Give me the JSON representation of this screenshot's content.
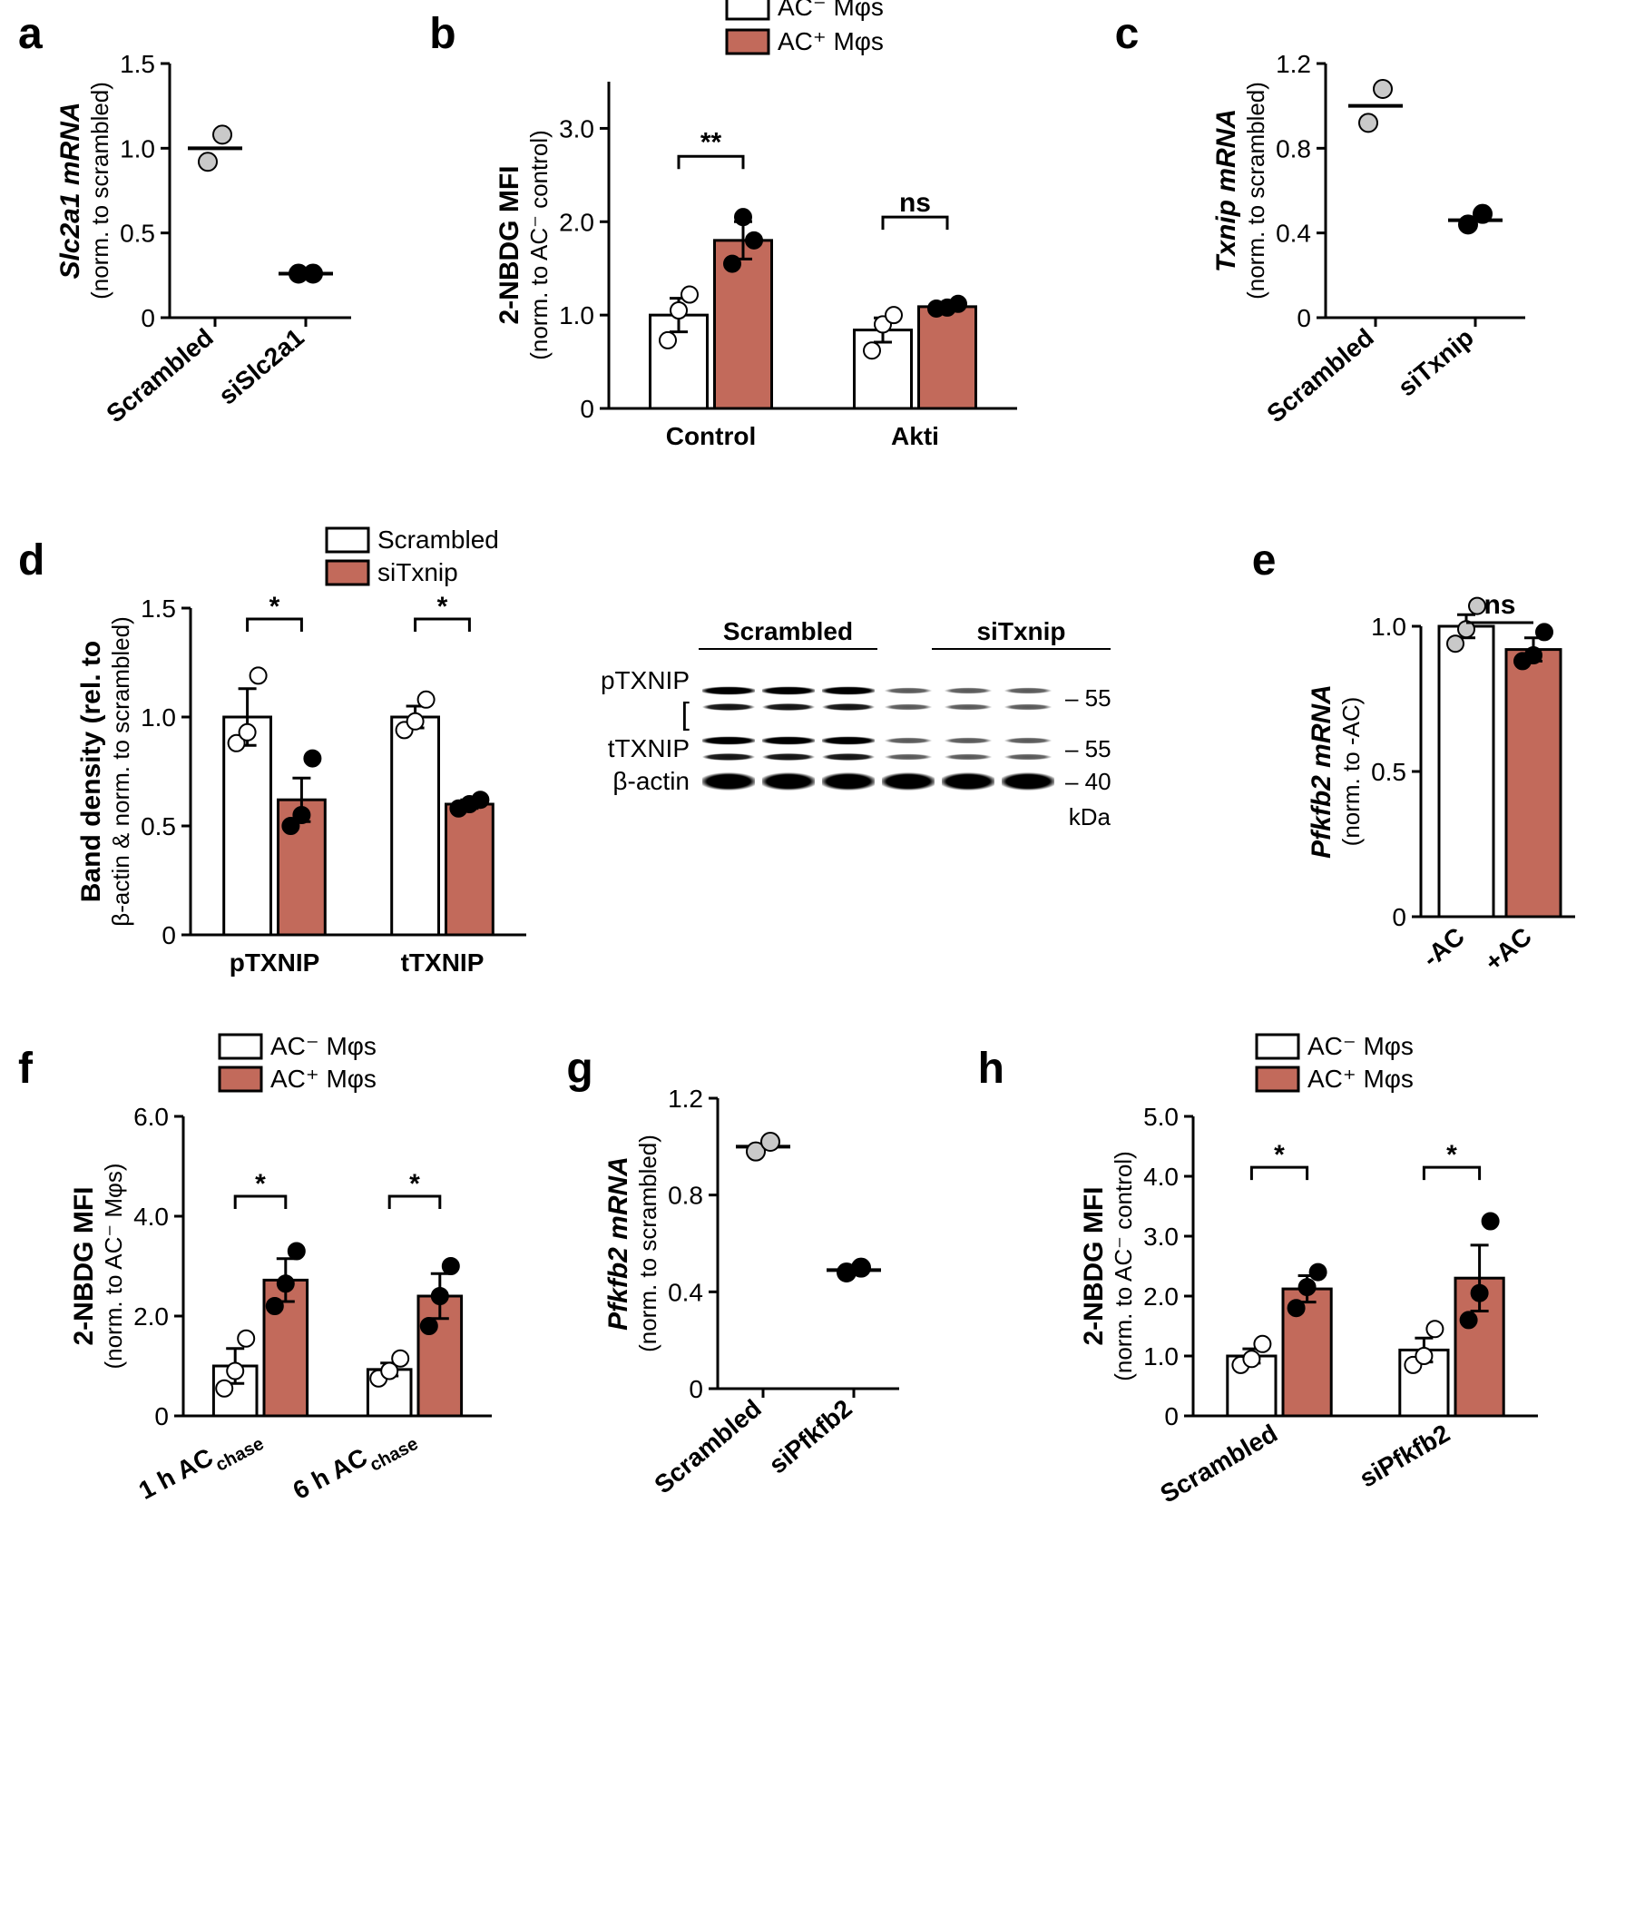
{
  "colors": {
    "white": "#ffffff",
    "red": "#c26a5b",
    "black": "#000000",
    "grey": "#c9c9c9"
  },
  "a": {
    "label": "a",
    "y_title": "Slc2a1 mRNA",
    "y_sub": "(norm. to scrambled)",
    "ylim": [
      0,
      1.5
    ],
    "y_step": 0.5,
    "categories": [
      "Scrambled",
      "siSlc2a1"
    ],
    "series": [
      {
        "x": 0,
        "points": [
          0.92,
          1.08
        ],
        "mean": 1.0,
        "point_fill": "#c9c9c9"
      },
      {
        "x": 1,
        "points": [
          0.26,
          0.26
        ],
        "mean": 0.26,
        "point_fill": "#000000"
      }
    ]
  },
  "b": {
    "label": "b",
    "y_title": "2-NBDG MFI",
    "y_sub": "(norm. to AC⁻ control)",
    "ylim": [
      0,
      3.5
    ],
    "y_step": 1,
    "y_minor_at": null,
    "legend": [
      {
        "fill": "#ffffff",
        "text": "AC⁻ Mφs"
      },
      {
        "fill": "#c26a5b",
        "text": "AC⁺ Mφs"
      }
    ],
    "groups": [
      "Control",
      "Akti"
    ],
    "bars": [
      {
        "group": 0,
        "cond": 0,
        "mean": 1.0,
        "err": 0.18,
        "fill": "#ffffff",
        "points": [
          0.73,
          1.05,
          1.22
        ],
        "pt_fill": "#ffffff"
      },
      {
        "group": 0,
        "cond": 1,
        "mean": 1.8,
        "err": 0.2,
        "fill": "#c26a5b",
        "points": [
          1.55,
          2.05,
          1.8
        ],
        "pt_fill": "#000000"
      },
      {
        "group": 1,
        "cond": 0,
        "mean": 0.84,
        "err": 0.13,
        "fill": "#ffffff",
        "points": [
          0.62,
          0.9,
          1.0
        ],
        "pt_fill": "#ffffff"
      },
      {
        "group": 1,
        "cond": 1,
        "mean": 1.09,
        "err": 0.04,
        "fill": "#c26a5b",
        "points": [
          1.07,
          1.08,
          1.12
        ],
        "pt_fill": "#000000"
      }
    ],
    "sigs": [
      {
        "group": 0,
        "text": "**",
        "y": 2.7
      },
      {
        "group": 1,
        "text": "ns",
        "y": 2.05
      }
    ]
  },
  "c": {
    "label": "c",
    "y_title": "Txnip mRNA",
    "y_sub": "(norm. to scrambled)",
    "ylim": [
      0,
      1.2
    ],
    "y_step": 0.4,
    "categories": [
      "Scrambled",
      "siTxnip"
    ],
    "series": [
      {
        "x": 0,
        "points": [
          0.92,
          1.08
        ],
        "mean": 1.0,
        "point_fill": "#c9c9c9"
      },
      {
        "x": 1,
        "points": [
          0.44,
          0.49
        ],
        "mean": 0.46,
        "point_fill": "#000000"
      }
    ]
  },
  "d": {
    "label": "d",
    "y_title": "Band density (rel. to",
    "y_sub": "β-actin & norm. to scrambled)",
    "ylim": [
      0,
      1.6
    ],
    "y_step": 0.5,
    "y_top_pad": 0.1,
    "legend": [
      {
        "fill": "#ffffff",
        "text": "Scrambled"
      },
      {
        "fill": "#c26a5b",
        "text": "siTxnip"
      }
    ],
    "groups": [
      "pTXNIP",
      "tTXNIP"
    ],
    "bars": [
      {
        "group": 0,
        "cond": 0,
        "mean": 1.0,
        "err": 0.13,
        "fill": "#ffffff",
        "points": [
          0.88,
          0.93,
          1.19
        ],
        "pt_fill": "#ffffff"
      },
      {
        "group": 0,
        "cond": 1,
        "mean": 0.62,
        "err": 0.1,
        "fill": "#c26a5b",
        "points": [
          0.5,
          0.55,
          0.81
        ],
        "pt_fill": "#000000"
      },
      {
        "group": 1,
        "cond": 0,
        "mean": 1.0,
        "err": 0.05,
        "fill": "#ffffff",
        "points": [
          0.94,
          0.98,
          1.08
        ],
        "pt_fill": "#ffffff"
      },
      {
        "group": 1,
        "cond": 1,
        "mean": 0.6,
        "err": 0.02,
        "fill": "#c26a5b",
        "points": [
          0.58,
          0.6,
          0.62
        ],
        "pt_fill": "#000000"
      }
    ],
    "sigs": [
      {
        "group": 0,
        "text": "*",
        "y": 1.45
      },
      {
        "group": 1,
        "text": "*",
        "y": 1.45
      }
    ],
    "western": {
      "group_headers": [
        "Scrambled",
        "siTxnip"
      ],
      "rows": [
        {
          "label": "pTXNIP",
          "mw": "55",
          "lanes": [
            2,
            2,
            2,
            1,
            1,
            1
          ],
          "doublet": true,
          "bracket": true
        },
        {
          "label": "tTXNIP",
          "mw": "55",
          "lanes": [
            2,
            2,
            2,
            1,
            1,
            1
          ],
          "doublet": true,
          "bracket": false
        },
        {
          "label": "β-actin",
          "mw": "40",
          "lanes": [
            2,
            2,
            2,
            2,
            2,
            2
          ],
          "doublet": false,
          "bracket": false
        }
      ],
      "unit": "kDa"
    }
  },
  "e": {
    "label": "e",
    "y_title": "Pfkfb2 mRNA",
    "y_sub": "(norm. to -AC)",
    "ylim": [
      0,
      1.2
    ],
    "y_step": 0.5,
    "y_extra_tick": 1.0,
    "categories": [
      "-AC",
      "+AC"
    ],
    "bars": [
      {
        "x": 0,
        "mean": 1.0,
        "err": 0.04,
        "fill": "#ffffff",
        "points": [
          0.94,
          0.99,
          1.07
        ],
        "pt_fill": "#c9c9c9"
      },
      {
        "x": 1,
        "mean": 0.92,
        "err": 0.04,
        "fill": "#c26a5b",
        "points": [
          0.88,
          0.9,
          0.98
        ],
        "pt_fill": "#000000"
      }
    ],
    "sig": {
      "text": "ns",
      "y": 1.12
    }
  },
  "f": {
    "label": "f",
    "y_title": "2-NBDG MFI",
    "y_sub": "(norm. to AC⁻ Mφs)",
    "ylim": [
      0,
      6
    ],
    "y_step": 2,
    "legend": [
      {
        "fill": "#ffffff",
        "text": "AC⁻ Mφs"
      },
      {
        "fill": "#c26a5b",
        "text": "AC⁺ Mφs"
      }
    ],
    "groups": [
      "1 h AC",
      "6 h AC"
    ],
    "group_sub": "chase",
    "bars": [
      {
        "group": 0,
        "cond": 0,
        "mean": 1.0,
        "err": 0.35,
        "fill": "#ffffff",
        "points": [
          0.55,
          0.9,
          1.55
        ],
        "pt_fill": "#ffffff"
      },
      {
        "group": 0,
        "cond": 1,
        "mean": 2.72,
        "err": 0.43,
        "fill": "#c26a5b",
        "points": [
          2.2,
          2.65,
          3.3
        ],
        "pt_fill": "#000000"
      },
      {
        "group": 1,
        "cond": 0,
        "mean": 0.93,
        "err": 0.13,
        "fill": "#ffffff",
        "points": [
          0.75,
          0.9,
          1.15
        ],
        "pt_fill": "#ffffff"
      },
      {
        "group": 1,
        "cond": 1,
        "mean": 2.4,
        "err": 0.45,
        "fill": "#c26a5b",
        "points": [
          1.8,
          2.4,
          3.0
        ],
        "pt_fill": "#000000"
      }
    ],
    "sigs": [
      {
        "group": 0,
        "text": "*",
        "y": 4.4
      },
      {
        "group": 1,
        "text": "*",
        "y": 4.4
      }
    ]
  },
  "g": {
    "label": "g",
    "y_title": "Pfkfb2 mRNA",
    "y_sub": "(norm. to scrambled)",
    "ylim": [
      0,
      1.2
    ],
    "y_step": 0.4,
    "categories": [
      "Scrambled",
      "siPfkfb2"
    ],
    "series": [
      {
        "x": 0,
        "points": [
          0.98,
          1.02
        ],
        "mean": 1.0,
        "point_fill": "#c9c9c9"
      },
      {
        "x": 1,
        "points": [
          0.48,
          0.5
        ],
        "mean": 0.49,
        "point_fill": "#000000"
      }
    ]
  },
  "h": {
    "label": "h",
    "y_title": "2-NBDG MFI",
    "y_sub": "(norm. to AC⁻ control)",
    "ylim": [
      0,
      5
    ],
    "y_step": 1,
    "legend": [
      {
        "fill": "#ffffff",
        "text": "AC⁻ Mφs"
      },
      {
        "fill": "#c26a5b",
        "text": "AC⁺ Mφs"
      }
    ],
    "groups": [
      "Scrambled",
      "siPfkfb2"
    ],
    "bars": [
      {
        "group": 0,
        "cond": 0,
        "mean": 1.0,
        "err": 0.12,
        "fill": "#ffffff",
        "points": [
          0.85,
          0.95,
          1.2
        ],
        "pt_fill": "#ffffff"
      },
      {
        "group": 0,
        "cond": 1,
        "mean": 2.12,
        "err": 0.22,
        "fill": "#c26a5b",
        "points": [
          1.8,
          2.15,
          2.4
        ],
        "pt_fill": "#000000"
      },
      {
        "group": 1,
        "cond": 0,
        "mean": 1.1,
        "err": 0.2,
        "fill": "#ffffff",
        "points": [
          0.85,
          1.0,
          1.45
        ],
        "pt_fill": "#ffffff"
      },
      {
        "group": 1,
        "cond": 1,
        "mean": 2.3,
        "err": 0.55,
        "fill": "#c26a5b",
        "points": [
          1.6,
          2.05,
          3.25
        ],
        "pt_fill": "#000000"
      }
    ],
    "sigs": [
      {
        "group": 0,
        "text": "*",
        "y": 4.15
      },
      {
        "group": 1,
        "text": "*",
        "y": 4.15
      }
    ]
  }
}
